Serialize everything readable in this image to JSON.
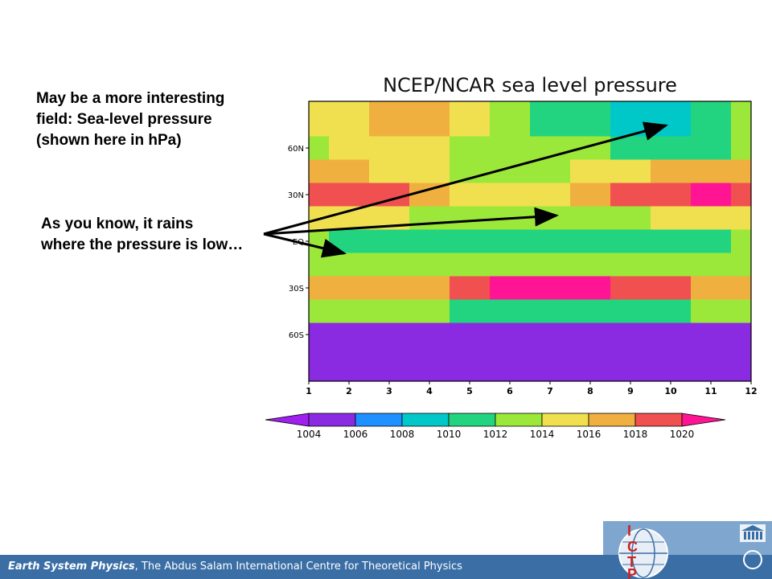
{
  "slide": {
    "intro_lines": [
      "May be a more interesting",
      "field: Sea-level pressure",
      "(shown here in hPa)"
    ],
    "rain_lines": [
      "As you know, it rains",
      "where the pressure is low…"
    ]
  },
  "footer": {
    "course": "Earth System Physics",
    "rest": ", The Abdus Salam International Centre for Theoretical Physics"
  },
  "logo": {
    "letters": [
      "I",
      "C",
      "T",
      "P"
    ]
  },
  "colors": {
    "footer": "#3a6ea5",
    "ictp_red": "#cc2222"
  },
  "chart_data": {
    "type": "heatmap",
    "title": "NCEP/NCAR sea level pressure",
    "x": [
      "1",
      "2",
      "3",
      "4",
      "5",
      "6",
      "7",
      "8",
      "9",
      "10",
      "11",
      "12"
    ],
    "y_ticks": [
      "60N",
      "30N",
      "EQ",
      "30S",
      "60S"
    ],
    "ylim": [
      -90,
      90
    ],
    "colorbar": {
      "levels": [
        "1004",
        "1006",
        "1008",
        "1010",
        "1012",
        "1014",
        "1016",
        "1018",
        "1020"
      ],
      "colors": [
        "#a020f0",
        "#8a2be2",
        "#1e90ff",
        "#00c8c8",
        "#22d47f",
        "#9be83a",
        "#f0e050",
        "#f0b040",
        "#f05050",
        "#ff1493"
      ]
    },
    "bands": [
      {
        "lat": 75,
        "values": [
          1014,
          1015,
          1016,
          1016,
          1014,
          1012,
          1011,
          1010,
          1009,
          1008,
          1010,
          1012
        ]
      },
      {
        "lat": 60,
        "values": [
          1013,
          1014,
          1015,
          1014,
          1013,
          1012,
          1012,
          1012,
          1011,
          1010,
          1011,
          1012
        ]
      },
      {
        "lat": 45,
        "values": [
          1016,
          1016,
          1015,
          1014,
          1013,
          1012,
          1013,
          1014,
          1015,
          1016,
          1017,
          1016
        ]
      },
      {
        "lat": 30,
        "values": [
          1019,
          1019,
          1018,
          1016,
          1015,
          1014,
          1014,
          1016,
          1018,
          1019,
          1020,
          1019
        ]
      },
      {
        "lat": 15,
        "values": [
          1014,
          1014,
          1014,
          1013,
          1012,
          1012,
          1012,
          1013,
          1013,
          1014,
          1014,
          1014
        ]
      },
      {
        "lat": 0,
        "values": [
          1012,
          1011,
          1011,
          1010,
          1011,
          1011,
          1011,
          1011,
          1011,
          1011,
          1011,
          1012
        ]
      },
      {
        "lat": -15,
        "values": [
          1012,
          1012,
          1012,
          1012,
          1012,
          1013,
          1013,
          1013,
          1013,
          1013,
          1012,
          1012
        ]
      },
      {
        "lat": -30,
        "values": [
          1016,
          1016,
          1016,
          1017,
          1018,
          1020,
          1020,
          1020,
          1019,
          1018,
          1017,
          1016
        ]
      },
      {
        "lat": -45,
        "values": [
          1012,
          1012,
          1012,
          1012,
          1011,
          1011,
          1011,
          1011,
          1011,
          1011,
          1012,
          1012
        ]
      },
      {
        "lat": -60,
        "values": [
          1004,
          1004,
          1004,
          1004,
          1004,
          1004,
          1004,
          1004,
          1004,
          1004,
          1004,
          1004
        ]
      },
      {
        "lat": -75,
        "values": [
          1004,
          1004,
          1004,
          1004,
          1004,
          1004,
          1004,
          1004,
          1004,
          1004,
          1004,
          1004
        ]
      }
    ]
  }
}
